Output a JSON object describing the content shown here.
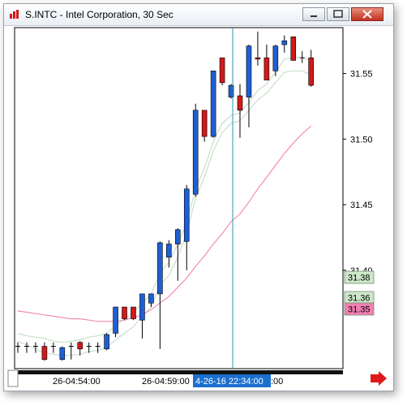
{
  "window": {
    "title": "S.INTC - Intel Corporation, 30 Sec",
    "buttons": [
      "minimize",
      "restore",
      "close"
    ]
  },
  "colors": {
    "up_candle": "#1f5fd6",
    "down_candle": "#d0191b",
    "band": "#c8dfc8",
    "ma": "#f28bb8",
    "crosshair": "#2f8fb3",
    "label_green": "#cde7c9",
    "label_pink": "#f27fb3",
    "time_highlight": "#1b70cf"
  },
  "chart_data": {
    "type": "candlestick",
    "title": "S.INTC - Intel Corporation, 30 Sec",
    "ylim": [
      31.325,
      31.585
    ],
    "yticks": [
      "31.55",
      "31.50",
      "31.45",
      "31.40"
    ],
    "price_labels": [
      "31.38",
      "31.36",
      "31.35"
    ],
    "x_labels": [
      "26-04:54:00",
      "26-04:59:00"
    ],
    "crosshair_time": "4-26-16 22:34:00",
    "crosshair_time_suffix": ":00",
    "candles": [
      {
        "o": 31.342,
        "h": 31.345,
        "l": 31.337,
        "c": 31.342
      },
      {
        "o": 31.342,
        "h": 31.345,
        "l": 31.337,
        "c": 31.342
      },
      {
        "o": 31.342,
        "h": 31.345,
        "l": 31.337,
        "c": 31.342
      },
      {
        "o": 31.342,
        "h": 31.345,
        "l": 31.331,
        "c": 31.332
      },
      {
        "o": 31.342,
        "h": 31.345,
        "l": 31.337,
        "c": 31.342
      },
      {
        "o": 31.332,
        "h": 31.342,
        "l": 31.331,
        "c": 31.341
      },
      {
        "o": 31.342,
        "h": 31.345,
        "l": 31.332,
        "c": 31.342
      },
      {
        "o": 31.345,
        "h": 31.346,
        "l": 31.335,
        "c": 31.34
      },
      {
        "o": 31.342,
        "h": 31.345,
        "l": 31.337,
        "c": 31.342
      },
      {
        "o": 31.342,
        "h": 31.345,
        "l": 31.337,
        "c": 31.342
      },
      {
        "o": 31.34,
        "h": 31.352,
        "l": 31.339,
        "c": 31.351
      },
      {
        "o": 31.352,
        "h": 31.372,
        "l": 31.349,
        "c": 31.372
      },
      {
        "o": 31.372,
        "h": 31.372,
        "l": 31.362,
        "c": 31.363
      },
      {
        "o": 31.372,
        "h": 31.372,
        "l": 31.362,
        "c": 31.363
      },
      {
        "o": 31.362,
        "h": 31.382,
        "l": 31.348,
        "c": 31.382
      },
      {
        "o": 31.375,
        "h": 31.382,
        "l": 31.372,
        "c": 31.382
      },
      {
        "o": 31.382,
        "h": 31.422,
        "l": 31.34,
        "c": 31.421
      },
      {
        "o": 31.41,
        "h": 31.423,
        "l": 31.402,
        "c": 31.42
      },
      {
        "o": 31.42,
        "h": 31.432,
        "l": 31.392,
        "c": 31.431
      },
      {
        "o": 31.422,
        "h": 31.465,
        "l": 31.4,
        "c": 31.462
      },
      {
        "o": 31.458,
        "h": 31.527,
        "l": 31.456,
        "c": 31.522
      },
      {
        "o": 31.522,
        "h": 31.522,
        "l": 31.498,
        "c": 31.502
      },
      {
        "o": 31.502,
        "h": 31.552,
        "l": 31.501,
        "c": 31.552
      },
      {
        "o": 31.562,
        "h": 31.562,
        "l": 31.541,
        "c": 31.543
      },
      {
        "o": 31.532,
        "h": 31.542,
        "l": 31.531,
        "c": 31.541
      },
      {
        "o": 31.533,
        "h": 31.542,
        "l": 31.501,
        "c": 31.522
      },
      {
        "o": 31.532,
        "h": 31.572,
        "l": 31.509,
        "c": 31.571
      },
      {
        "o": 31.562,
        "h": 31.582,
        "l": 31.556,
        "c": 31.561
      },
      {
        "o": 31.562,
        "h": 31.572,
        "l": 31.545,
        "c": 31.545
      },
      {
        "o": 31.552,
        "h": 31.572,
        "l": 31.548,
        "c": 31.571
      },
      {
        "o": 31.572,
        "h": 31.579,
        "l": 31.566,
        "c": 31.575
      },
      {
        "o": 31.578,
        "h": 31.578,
        "l": 31.56,
        "c": 31.56
      },
      {
        "o": 31.562,
        "h": 31.567,
        "l": 31.558,
        "c": 31.562
      },
      {
        "o": 31.562,
        "h": 31.568,
        "l": 31.54,
        "c": 31.541
      }
    ],
    "series": [
      {
        "values": [
          31.346,
          31.343,
          31.34,
          31.337,
          31.336,
          31.335,
          31.335,
          31.336,
          31.338,
          31.339,
          31.341,
          31.347,
          31.352,
          31.357,
          31.365,
          31.372,
          31.389,
          31.396,
          31.41,
          31.428,
          31.455,
          31.471,
          31.491,
          31.505,
          31.512,
          31.514,
          31.522,
          31.53,
          31.535,
          31.543,
          31.551,
          31.552,
          31.552,
          31.549
        ]
      },
      {
        "values": [
          31.352,
          31.35,
          31.349,
          31.348,
          31.346,
          31.345,
          31.346,
          31.347,
          31.349,
          31.35,
          31.352,
          31.358,
          31.363,
          31.368,
          31.375,
          31.382,
          31.398,
          31.406,
          31.42,
          31.436,
          31.462,
          31.478,
          31.498,
          31.512,
          31.518,
          31.52,
          31.528,
          31.537,
          31.542,
          31.551,
          31.561,
          31.562,
          31.562,
          31.56
        ]
      },
      {
        "values": [
          31.369,
          31.368,
          31.367,
          31.366,
          31.365,
          31.364,
          31.363,
          31.363,
          31.362,
          31.361,
          31.361,
          31.361,
          31.362,
          31.364,
          31.366,
          31.37,
          31.375,
          31.38,
          31.387,
          31.394,
          31.403,
          31.411,
          31.42,
          31.428,
          31.437,
          31.443,
          31.452,
          31.462,
          31.471,
          31.48,
          31.489,
          31.497,
          31.504,
          31.51
        ]
      }
    ]
  }
}
